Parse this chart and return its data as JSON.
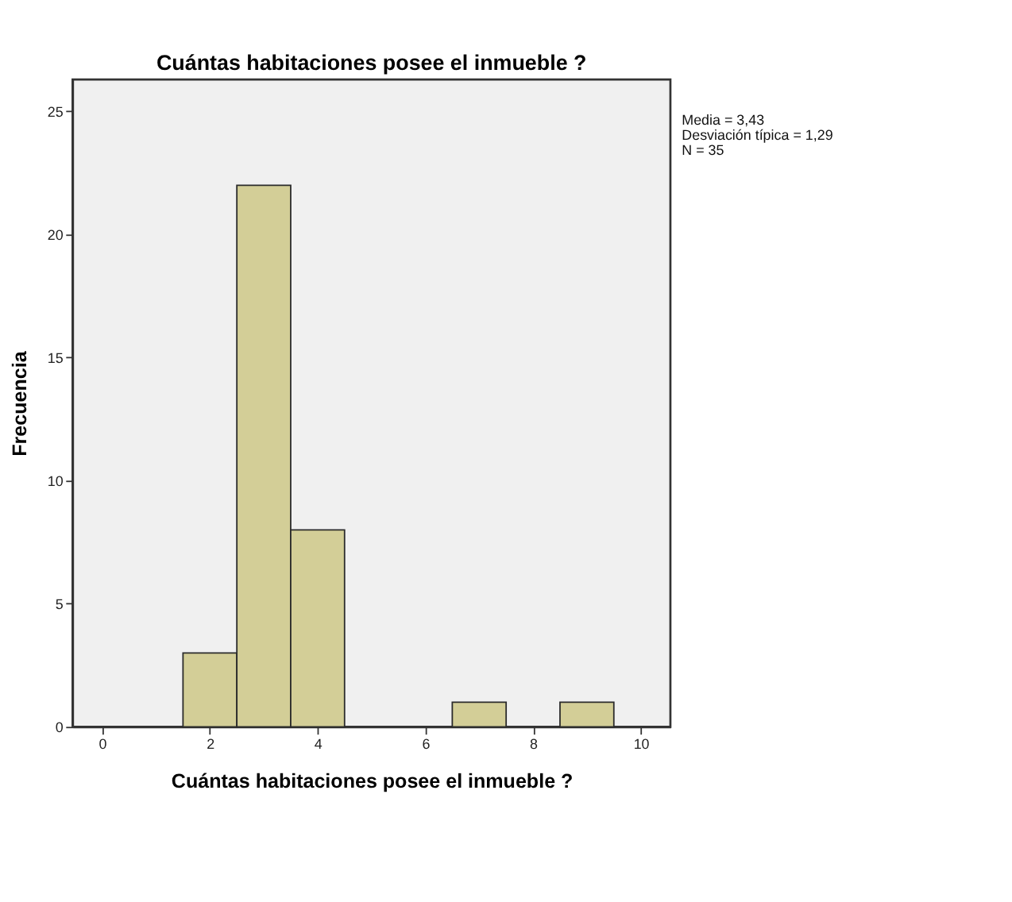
{
  "chart_data": {
    "type": "histogram",
    "title": "Cuántas habitaciones posee el inmueble ?",
    "xlabel": "Cuántas habitaciones posee el inmueble ?",
    "ylabel": "Frecuencia",
    "bins": [
      1.5,
      2.5,
      3.5,
      4.5,
      5.5,
      6.5,
      7.5,
      8.5,
      9.5
    ],
    "values": [
      3,
      22,
      8,
      0,
      0,
      1,
      0,
      1
    ],
    "color": "#d3ce97",
    "xlim": [
      -0.55,
      10.55
    ],
    "xticks": [
      0,
      2,
      4,
      6,
      8,
      10
    ],
    "ylim": [
      0,
      26.3
    ],
    "yticks": [
      0,
      5,
      10,
      15,
      20,
      25
    ],
    "grid": false,
    "annotations": [
      "Media = 3,43",
      "Desviación típica = 1,29",
      "N = 35"
    ]
  }
}
